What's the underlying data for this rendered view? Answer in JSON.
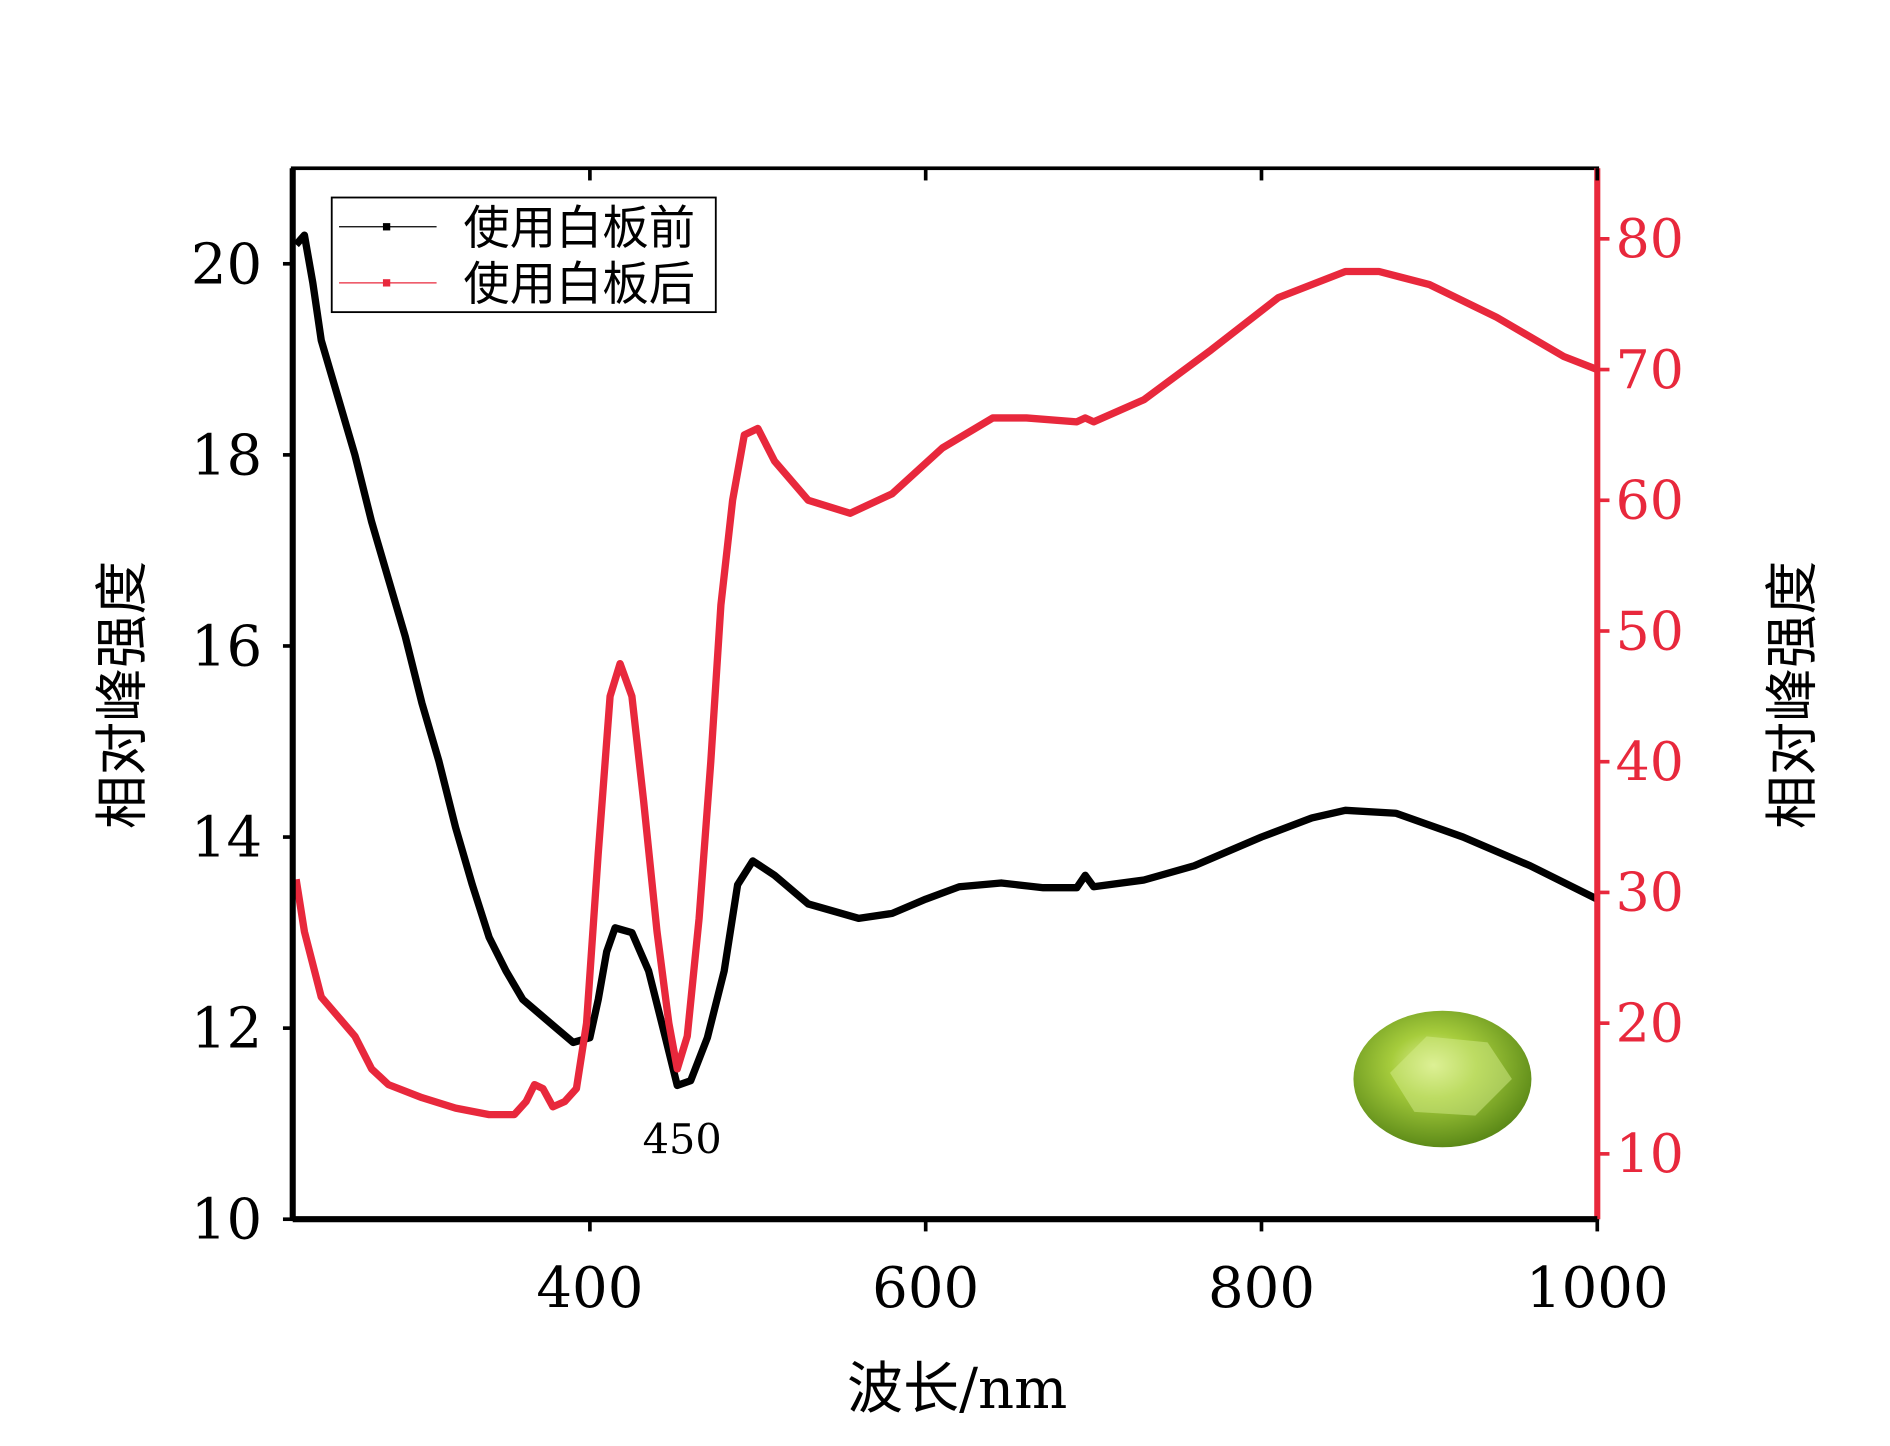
{
  "chart_data": {
    "type": "line",
    "xlabel": "波长/nm",
    "ylabel_left": "相对峰强度",
    "ylabel_right": "相对峰强度",
    "xlim": [
      223,
      1000
    ],
    "ylim_left": [
      10,
      21
    ],
    "ylim_right": [
      5,
      85.4
    ],
    "x_ticks": [
      400,
      600,
      800,
      1000
    ],
    "y_ticks_left": [
      10,
      12,
      14,
      16,
      18,
      20
    ],
    "y_ticks_right": [
      10,
      20,
      30,
      40,
      50,
      60,
      70,
      80
    ],
    "grid": false,
    "legend_position": "top-left",
    "annotation": "450",
    "colors": {
      "left": "#000000",
      "right": "#e8283c"
    },
    "series": [
      {
        "name": "使用白板前",
        "axis": "left",
        "color": "#000000",
        "x": [
          225,
          230,
          235,
          240,
          250,
          260,
          270,
          280,
          290,
          300,
          310,
          320,
          330,
          340,
          350,
          360,
          370,
          380,
          390,
          400,
          405,
          410,
          415,
          425,
          435,
          445,
          452,
          460,
          470,
          480,
          488,
          497,
          510,
          530,
          560,
          580,
          600,
          620,
          645,
          670,
          690,
          695,
          700,
          730,
          760,
          800,
          830,
          850,
          880,
          920,
          960,
          1000
        ],
        "y": [
          20.2,
          20.3,
          19.8,
          19.2,
          18.6,
          18.0,
          17.3,
          16.7,
          16.1,
          15.4,
          14.8,
          14.1,
          13.5,
          12.95,
          12.6,
          12.3,
          12.15,
          12.0,
          11.85,
          11.9,
          12.3,
          12.8,
          13.05,
          13.0,
          12.6,
          11.9,
          11.4,
          11.45,
          11.9,
          12.6,
          13.5,
          13.75,
          13.6,
          13.3,
          13.15,
          13.2,
          13.35,
          13.48,
          13.52,
          13.47,
          13.47,
          13.6,
          13.48,
          13.55,
          13.7,
          14.0,
          14.2,
          14.28,
          14.25,
          14.0,
          13.7,
          13.35
        ]
      },
      {
        "name": "使用白板后",
        "axis": "right",
        "color": "#e8283c",
        "x": [
          225,
          230,
          240,
          250,
          260,
          270,
          280,
          300,
          320,
          340,
          355,
          362,
          367,
          372,
          378,
          385,
          392,
          398,
          405,
          412,
          418,
          425,
          432,
          440,
          447,
          452,
          458,
          465,
          472,
          478,
          485,
          492,
          500,
          510,
          530,
          555,
          580,
          610,
          640,
          660,
          690,
          695,
          700,
          730,
          770,
          810,
          850,
          870,
          900,
          940,
          980,
          1000
        ],
        "y": [
          31,
          27,
          22,
          20.5,
          19,
          16.5,
          15.3,
          14.3,
          13.5,
          13.0,
          13.0,
          14,
          15.3,
          15,
          13.6,
          14,
          15,
          20,
          33,
          45,
          47.5,
          45,
          37,
          27,
          20,
          16.5,
          19,
          28,
          40,
          52,
          60,
          65,
          65.5,
          63,
          60,
          59,
          60.5,
          64,
          66.3,
          66.3,
          66,
          66.3,
          66,
          67.7,
          71.5,
          75.5,
          77.5,
          77.5,
          76.5,
          74,
          71,
          70
        ]
      }
    ]
  }
}
